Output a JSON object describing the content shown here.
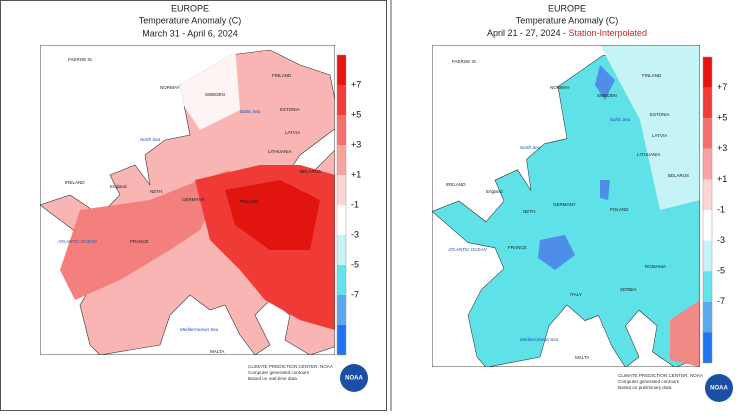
{
  "panels": [
    {
      "region": "EUROPE",
      "subtitle": "Temperature Anomaly (C)",
      "period": "March 31 - April 6, 2024",
      "legend": {
        "labels": [
          "+7",
          "+5",
          "+3",
          "+1",
          "-1",
          "-3",
          "-5",
          "-7"
        ],
        "colors": [
          "#e8140f",
          "#f23d3a",
          "#f4706d",
          "#f8a3a1",
          "#fcd6d5",
          "#ffffff",
          "#c6f3f5",
          "#63e3ea",
          "#5aa8ee",
          "#1f74f2"
        ]
      },
      "labels": [
        "FAEROE IS.",
        "NORWAY",
        "SWEDEN",
        "FINLAND",
        "ESTONIA",
        "LATVIA",
        "LITHUANIA",
        "BELARUS",
        "North Sea",
        "Baltic Sea",
        "England",
        "IRELAND",
        "NETH.",
        "GERMANY",
        "POLAND",
        "FRANCE",
        "ATLANTIC OCEAN",
        "Mediterranean Sea",
        "MALTA"
      ],
      "footer": [
        "CLIMATE PREDICTION CENTER, NOAA",
        "Computer generated contours",
        "Based on real-time data"
      ],
      "logo": "NOAA"
    },
    {
      "region": "EUROPE",
      "subtitle": "Temperature Anomaly (C)",
      "period": "April 21 - 27, 2024 - ",
      "period_note": "Station-Interpolated",
      "legend": {
        "labels": [
          "+7",
          "+5",
          "+3",
          "+1",
          "-1",
          "-3",
          "-5",
          "-7"
        ],
        "colors": [
          "#e8140f",
          "#f23d3a",
          "#f4706d",
          "#f8a3a1",
          "#fcd6d5",
          "#ffffff",
          "#c6f3f5",
          "#63e3ea",
          "#5aa8ee",
          "#1f74f2"
        ]
      },
      "labels": [
        "FAEROE IS.",
        "NORWAY",
        "SWEDEN",
        "FINLAND",
        "ESTONIA",
        "LATVIA",
        "LITHUANIA",
        "BELARUS",
        "North Sea",
        "Baltic Sea",
        "England",
        "IRELAND",
        "NETH.",
        "GERMANY",
        "POLAND",
        "FRANCE",
        "ATLANTIC OCEAN",
        "Mediterranean Sea",
        "MALTA",
        "ROMANIA",
        "SERBIA",
        "ITALY"
      ],
      "footer": [
        "CLIMATE PREDICTION CENTER, NOAA",
        "Computer generated contours",
        "Based on preliminary data"
      ],
      "logo": "NOAA"
    }
  ]
}
